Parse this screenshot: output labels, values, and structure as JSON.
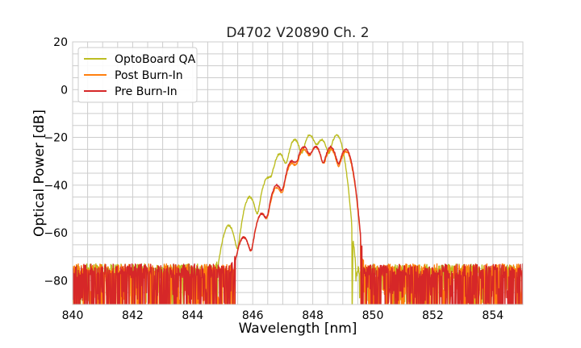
{
  "chart_data": {
    "type": "line",
    "title": "D4702 V20890 Ch. 2",
    "xlabel": "Wavelength [nm]",
    "ylabel": "Optical Power [dB]",
    "xlim": [
      840,
      855
    ],
    "ylim": [
      -90,
      20
    ],
    "xticks": [
      840,
      842,
      844,
      846,
      848,
      850,
      852,
      854
    ],
    "yticks": [
      20,
      0,
      -20,
      -40,
      -60,
      -80
    ],
    "grid": true,
    "legend_position": "top-left",
    "noise_floor_db": -76,
    "series": [
      {
        "name": "OptoBoard QA",
        "color": "#bcbd22",
        "peaks": [
          {
            "x": 845.2,
            "y": -57
          },
          {
            "x": 845.9,
            "y": -45
          },
          {
            "x": 846.5,
            "y": -37
          },
          {
            "x": 846.9,
            "y": -27
          },
          {
            "x": 847.4,
            "y": -21
          },
          {
            "x": 847.9,
            "y": -19
          },
          {
            "x": 848.3,
            "y": -21
          },
          {
            "x": 848.8,
            "y": -19
          }
        ]
      },
      {
        "name": "Post Burn-In",
        "color": "#ff7f0e",
        "peaks": [
          {
            "x": 845.7,
            "y": -62
          },
          {
            "x": 846.3,
            "y": -52
          },
          {
            "x": 846.8,
            "y": -41
          },
          {
            "x": 847.3,
            "y": -31
          },
          {
            "x": 847.7,
            "y": -25
          },
          {
            "x": 848.1,
            "y": -24
          },
          {
            "x": 848.6,
            "y": -25
          },
          {
            "x": 849.1,
            "y": -26
          }
        ]
      },
      {
        "name": "Pre Burn-In",
        "color": "#d62728",
        "peaks": [
          {
            "x": 845.7,
            "y": -62
          },
          {
            "x": 846.3,
            "y": -52
          },
          {
            "x": 846.8,
            "y": -40
          },
          {
            "x": 847.3,
            "y": -30
          },
          {
            "x": 847.7,
            "y": -24
          },
          {
            "x": 848.1,
            "y": -24
          },
          {
            "x": 848.6,
            "y": -24
          },
          {
            "x": 849.1,
            "y": -25
          }
        ]
      }
    ]
  }
}
